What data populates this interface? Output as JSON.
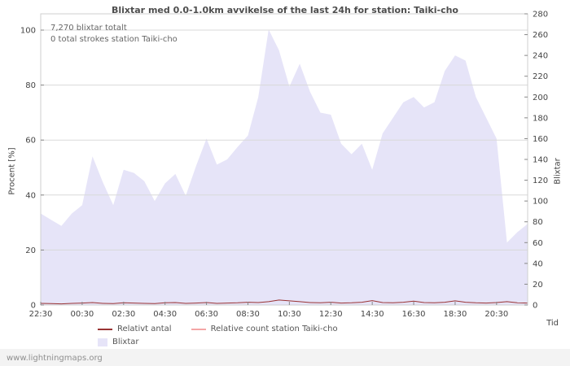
{
  "title": "Blixtar med 0.0-1.0km avvikelse of the last 24h for station: Taiki-cho",
  "annotations": {
    "total": "7,270 blixtar totalt",
    "station": "0 total strokes station Taiki-cho"
  },
  "axes": {
    "left_label": "Procent  [%]",
    "right_label": "Blixtar",
    "x_label": "Tid"
  },
  "legend": [
    {
      "label": "Relativt antal",
      "color": "#993333",
      "type": "line"
    },
    {
      "label": "Relative count station Taiki-cho",
      "color": "#f4a6a6",
      "type": "line"
    },
    {
      "label": "Blixtar",
      "color": "#e6e4f8",
      "type": "area"
    }
  ],
  "footer": "www.lightningmaps.org",
  "chart_data": {
    "type": "area",
    "title": "Blixtar med 0.0-1.0km avvikelse of the last 24h for station: Taiki-cho",
    "x_ticks": [
      "22:30",
      "00:30",
      "02:30",
      "04:30",
      "06:30",
      "08:30",
      "10:30",
      "12:30",
      "14:30",
      "16:30",
      "18:30",
      "20:30"
    ],
    "left_axis": {
      "label": "Procent [%]",
      "ticks": [
        0,
        20,
        40,
        60,
        80,
        100
      ],
      "range": [
        0,
        100
      ]
    },
    "right_axis": {
      "label": "Blixtar",
      "ticks": [
        0,
        20,
        40,
        60,
        80,
        100,
        120,
        140,
        160,
        180,
        200,
        220,
        240,
        260,
        280
      ],
      "range": [
        0,
        280
      ]
    },
    "grid": true,
    "legend_position": "bottom",
    "x": [
      "22:30",
      "23:00",
      "23:30",
      "00:00",
      "00:30",
      "01:00",
      "01:30",
      "02:00",
      "02:30",
      "03:00",
      "03:30",
      "04:00",
      "04:30",
      "05:00",
      "05:30",
      "06:00",
      "06:30",
      "07:00",
      "07:30",
      "08:00",
      "08:30",
      "09:00",
      "09:30",
      "10:00",
      "10:30",
      "11:00",
      "11:30",
      "12:00",
      "12:30",
      "13:00",
      "13:30",
      "14:00",
      "14:30",
      "15:00",
      "15:30",
      "16:00",
      "16:30",
      "17:00",
      "17:30",
      "18:00",
      "18:30",
      "19:00",
      "19:30",
      "20:00",
      "20:30",
      "21:00",
      "21:30",
      "22:00"
    ],
    "series": [
      {
        "name": "Blixtar",
        "type": "area",
        "axis": "right",
        "color": "#e6e4f8",
        "values": [
          88,
          82,
          76,
          88,
          96,
          143,
          118,
          96,
          130,
          127,
          119,
          100,
          117,
          126,
          105,
          134,
          160,
          135,
          140,
          152,
          163,
          200,
          265,
          245,
          210,
          232,
          205,
          185,
          183,
          155,
          145,
          155,
          130,
          165,
          180,
          195,
          200,
          190,
          195,
          225,
          240,
          235,
          200,
          180,
          160,
          60,
          70,
          78
        ]
      },
      {
        "name": "Relativt antal",
        "type": "line",
        "axis": "left",
        "color": "#993333",
        "values": [
          0.6,
          0.5,
          0.4,
          0.6,
          0.7,
          0.9,
          0.6,
          0.5,
          0.8,
          0.7,
          0.6,
          0.5,
          0.8,
          0.9,
          0.6,
          0.7,
          0.9,
          0.6,
          0.7,
          0.8,
          1.0,
          0.9,
          1.2,
          1.8,
          1.5,
          1.2,
          0.9,
          0.8,
          1.0,
          0.7,
          0.8,
          1.0,
          1.6,
          0.9,
          0.8,
          1.0,
          1.4,
          0.9,
          0.8,
          1.0,
          1.5,
          1.0,
          0.8,
          0.7,
          0.9,
          1.2,
          0.8,
          0.7
        ]
      },
      {
        "name": "Relative count station Taiki-cho",
        "type": "line",
        "axis": "left",
        "color": "#f4a6a6",
        "values": [
          0,
          0,
          0,
          0,
          0,
          0,
          0,
          0,
          0,
          0,
          0,
          0,
          0,
          0,
          0,
          0,
          0,
          0,
          0,
          0,
          0,
          0,
          0,
          0,
          0,
          0,
          0,
          0,
          0,
          0,
          0,
          0,
          0,
          0,
          0,
          0,
          0,
          0,
          0,
          0,
          0,
          0,
          0,
          0,
          0,
          0,
          0,
          0
        ]
      }
    ]
  }
}
